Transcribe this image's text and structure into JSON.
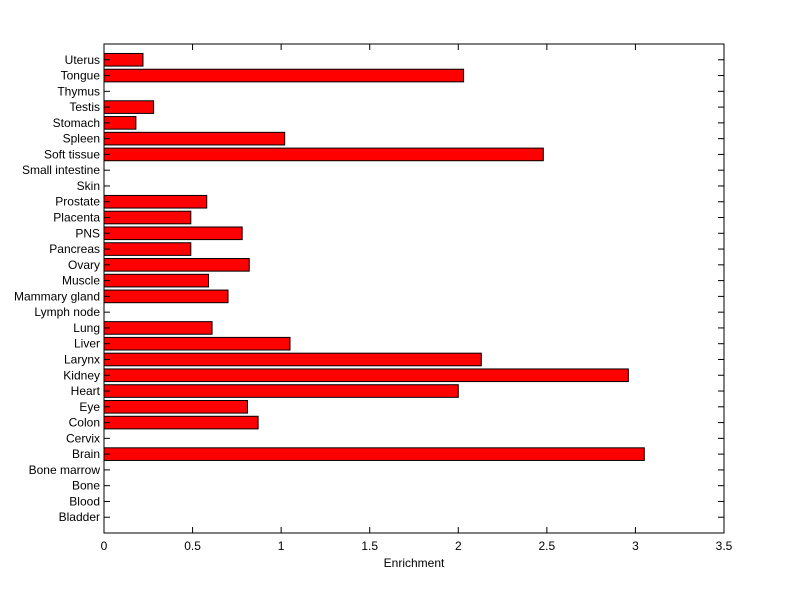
{
  "chart_data": {
    "type": "bar",
    "orientation": "horizontal",
    "title": "",
    "xlabel": "Enrichment",
    "ylabel": "",
    "xlim": [
      0,
      3.5
    ],
    "x_ticks": [
      0,
      0.5,
      1,
      1.5,
      2,
      2.5,
      3,
      3.5
    ],
    "x_tick_labels": [
      "0",
      "0.5",
      "1",
      "1.5",
      "2",
      "2.5",
      "3",
      "3.5"
    ],
    "grid": false,
    "legend": "none",
    "bar_color": "#ff0000",
    "bar_edge_color": "#000000",
    "categories": [
      "Bladder",
      "Blood",
      "Bone",
      "Bone marrow",
      "Brain",
      "Cervix",
      "Colon",
      "Eye",
      "Heart",
      "Kidney",
      "Larynx",
      "Liver",
      "Lung",
      "Lymph node",
      "Mammary gland",
      "Muscle",
      "Ovary",
      "Pancreas",
      "PNS",
      "Placenta",
      "Prostate",
      "Skin",
      "Small intestine",
      "Soft tissue",
      "Spleen",
      "Stomach",
      "Testis",
      "Thymus",
      "Tongue",
      "Uterus"
    ],
    "values": [
      0,
      0,
      0,
      0,
      3.05,
      0,
      0.87,
      0.81,
      2.0,
      2.96,
      2.13,
      1.05,
      0.61,
      0,
      0.7,
      0.59,
      0.82,
      0.49,
      0.78,
      0.49,
      0.58,
      0,
      0,
      2.48,
      1.02,
      0.18,
      0.28,
      0,
      2.03,
      0.22
    ]
  }
}
